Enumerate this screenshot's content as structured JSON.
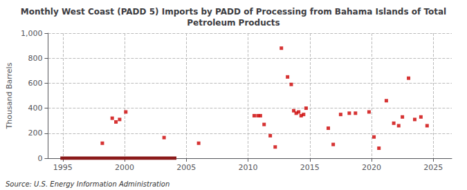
{
  "chart_data": {
    "type": "scatter",
    "title": "Monthly West Coast (PADD 5) Imports by PADD of Processing from Bahama Islands of Total\nPetroleum Products",
    "ylabel": "Thousand Barrels",
    "source": "Source: U.S. Energy Information Administration",
    "xlim": [
      1993.8,
      2026.5
    ],
    "xticks": [
      1995,
      2000,
      2005,
      2010,
      2015,
      2020,
      2025
    ],
    "ylim": [
      0,
      1000
    ],
    "yticks": [
      0,
      200,
      400,
      600,
      800,
      {
        "value": 1000,
        "label": "1,000"
      }
    ],
    "grid": true,
    "series": [
      {
        "type": "scatter",
        "color": "#cc0000",
        "marker": "square",
        "x": [
          1998.2,
          1999.0,
          1999.3,
          1999.6,
          2000.1,
          2003.2,
          2006.0,
          2010.5,
          2010.8,
          2011.0,
          2011.3,
          2011.8,
          2012.2,
          2012.7,
          2013.2,
          2013.5,
          2013.7,
          2013.9,
          2014.1,
          2014.3,
          2014.5,
          2014.7,
          2016.5,
          2016.9,
          2017.5,
          2018.2,
          2018.7,
          2019.8,
          2020.2,
          2020.6,
          2021.2,
          2021.8,
          2022.2,
          2022.5,
          2023.0,
          2023.5,
          2024.0,
          2024.5
        ],
        "values": [
          120,
          320,
          290,
          310,
          370,
          165,
          120,
          340,
          340,
          340,
          270,
          180,
          90,
          880,
          650,
          590,
          380,
          360,
          370,
          340,
          350,
          400,
          240,
          110,
          350,
          360,
          360,
          370,
          170,
          80,
          460,
          280,
          260,
          330,
          640,
          310,
          330,
          260
        ]
      },
      {
        "type": "line",
        "color": "#8b1a1a",
        "line_style": "solid",
        "x": [
          1994.8,
          2004.2
        ],
        "values": [
          0,
          0
        ]
      }
    ]
  }
}
